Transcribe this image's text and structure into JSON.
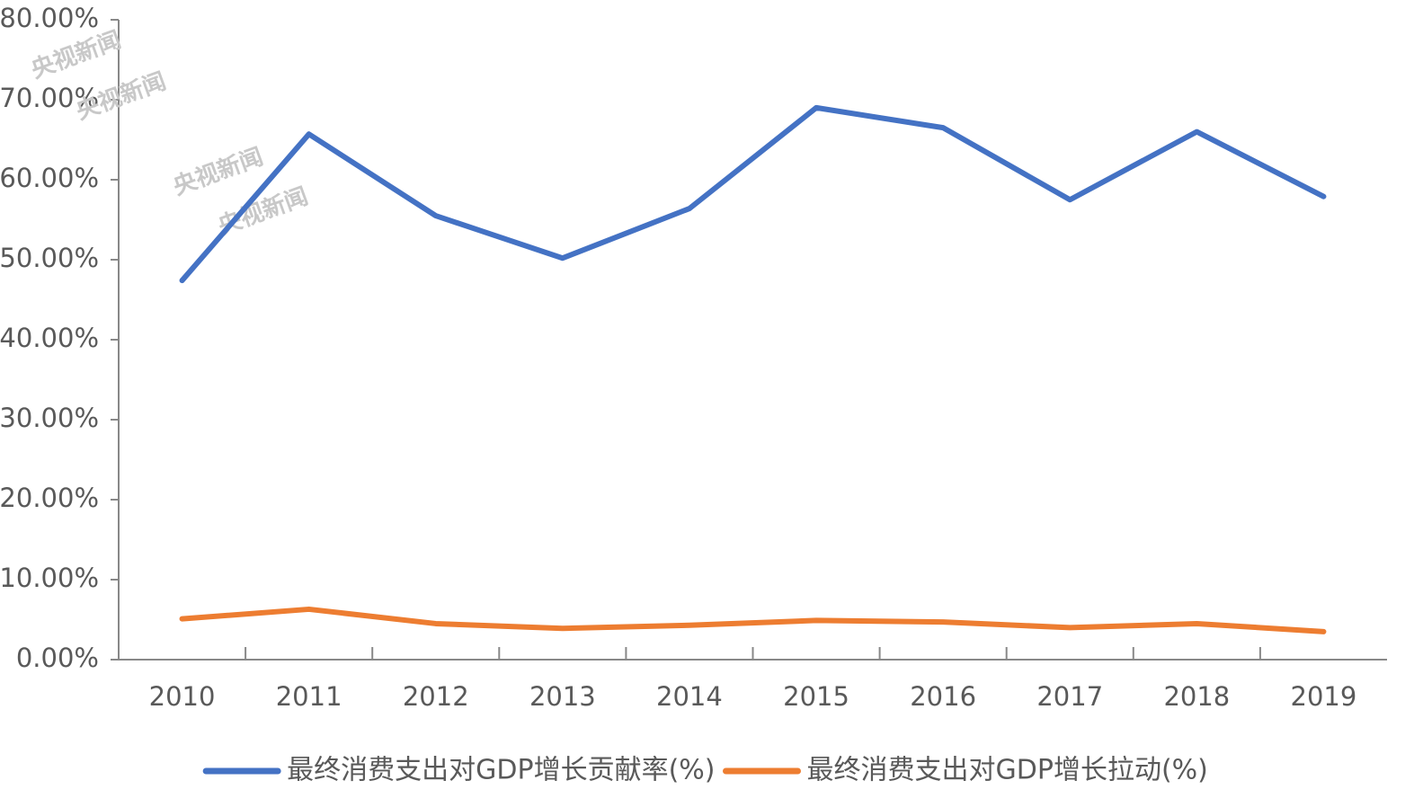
{
  "chart_data": {
    "type": "line",
    "categories": [
      "2010",
      "2011",
      "2012",
      "2013",
      "2014",
      "2015",
      "2016",
      "2017",
      "2018",
      "2019"
    ],
    "series": [
      {
        "name": "最终消费支出对GDP增长贡献率(%)",
        "color": "#4472c4",
        "values": [
          47.4,
          65.7,
          55.5,
          50.2,
          56.4,
          69.0,
          66.5,
          57.5,
          66.0,
          57.9
        ]
      },
      {
        "name": "最终消费支出对GDP增长拉动(%)",
        "color": "#ed7d31",
        "values": [
          5.1,
          6.3,
          4.5,
          3.9,
          4.3,
          4.9,
          4.7,
          4.0,
          4.5,
          3.5
        ]
      }
    ],
    "ylim": [
      0,
      80
    ],
    "yticks": [
      {
        "value": 0,
        "label": "0.00%"
      },
      {
        "value": 10,
        "label": "10.00%"
      },
      {
        "value": 20,
        "label": "20.00%"
      },
      {
        "value": 30,
        "label": "30.00%"
      },
      {
        "value": 40,
        "label": "40.00%"
      },
      {
        "value": 50,
        "label": "50.00%"
      },
      {
        "value": 60,
        "label": "60.00%"
      },
      {
        "value": 70,
        "label": "70.00%"
      },
      {
        "value": 80,
        "label": "80.00%"
      }
    ],
    "legend": "bottom",
    "watermarks": [
      "央视新闻",
      "央视新闻",
      "央视新闻",
      "央视新闻"
    ]
  }
}
